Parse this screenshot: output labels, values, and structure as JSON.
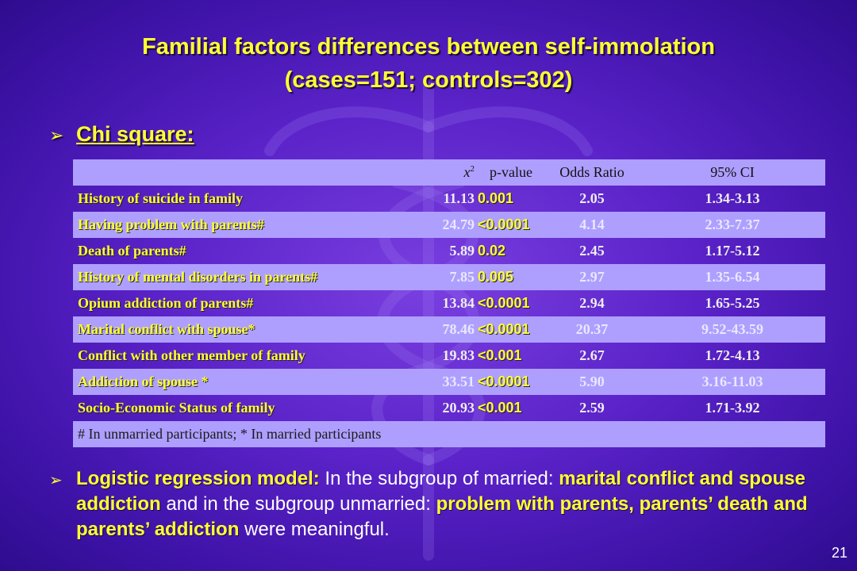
{
  "title": {
    "line1": "Familial factors differences between self-immolation",
    "line2": "(cases=151; controls=302)"
  },
  "heading": {
    "arrow": "➢",
    "text": "Chi square:"
  },
  "table": {
    "headers": {
      "chi": "x",
      "chi_sup": "2",
      "pvalue": "p-value",
      "odds": "Odds Ratio",
      "ci": "95% CI"
    },
    "rows": [
      {
        "label": "History of suicide in family",
        "chi": "11.13",
        "p": "0.001",
        "or": "2.05",
        "ci": "1.34-3.13"
      },
      {
        "label": "Having problem with parents#",
        "chi": "24.79",
        "p": "<0.0001",
        "or": "4.14",
        "ci": "2.33-7.37"
      },
      {
        "label": "Death of parents#",
        "chi": "5.89",
        "p": "0.02",
        "or": "2.45",
        "ci": "1.17-5.12"
      },
      {
        "label": "History of mental disorders in parents#",
        "chi": "7.85",
        "p": "0.005",
        "or": "2.97",
        "ci": "1.35-6.54"
      },
      {
        "label": "Opium addiction of parents#",
        "chi": "13.84",
        "p": "<0.0001",
        "or": "2.94",
        "ci": "1.65-5.25"
      },
      {
        "label": "Marital conflict with spouse*",
        "chi": "78.46",
        "p": "<0.0001",
        "or": "20.37",
        "ci": "9.52-43.59"
      },
      {
        "label": "Conflict with other member of family",
        "chi": "19.83",
        "p": "<0.001",
        "or": "2.67",
        "ci": "1.72-4.13"
      },
      {
        "label": "Addiction of spouse *",
        "chi": "33.51",
        "p": "<0.0001",
        "or": "5.90",
        "ci": "3.16-11.03"
      },
      {
        "label": "Socio-Economic Status of family",
        "chi": "20.93",
        "p": "<0.001",
        "or": "2.59",
        "ci": "1.71-3.92"
      }
    ],
    "note": "# In unmarried participants; * In married participants"
  },
  "bullet": {
    "arrow": "➢",
    "lead": "Logistic regression model:",
    "t1": " In the subgroup of married: ",
    "b1": "marital conflict and spouse addiction",
    "t2": " and in the subgroup unmarried: ",
    "b2": "problem with parents, parents’ death and parents’ addiction",
    "t3": " were meaningful."
  },
  "page_number": "21",
  "colors": {
    "accent_yellow": "#ffff33",
    "row_light": "#ae9fff",
    "background": "#5a22c8"
  }
}
